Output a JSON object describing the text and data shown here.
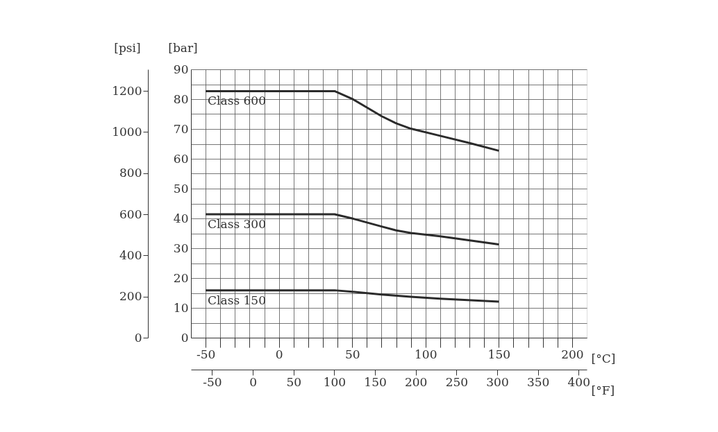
{
  "chart_data": {
    "type": "line",
    "xlabel": "[°C]",
    "ylabel": "[bar]",
    "y2label": "[psi]",
    "x2label": "[°F]",
    "xlim": [
      -60,
      210
    ],
    "xticks": [
      {
        "value": -50,
        "label": "-50"
      },
      {
        "value": -40,
        "label": null
      },
      {
        "value": -30,
        "label": null
      },
      {
        "value": -20,
        "label": null
      },
      {
        "value": -10,
        "label": null
      },
      0,
      {
        "value": 10,
        "label": null
      },
      {
        "value": 20,
        "label": null
      },
      {
        "value": 30,
        "label": null
      },
      {
        "value": 40,
        "label": null
      },
      50,
      {
        "value": 60,
        "label": null
      },
      {
        "value": 70,
        "label": null
      },
      {
        "value": 80,
        "label": null
      },
      {
        "value": 90,
        "label": null
      },
      100,
      {
        "value": 110,
        "label": null
      },
      {
        "value": 120,
        "label": null
      },
      {
        "value": 130,
        "label": null
      },
      {
        "value": 140,
        "label": null
      },
      150,
      {
        "value": 160,
        "label": null
      },
      {
        "value": 170,
        "label": null
      },
      {
        "value": 180,
        "label": null
      },
      {
        "value": 190,
        "label": null
      },
      200
    ],
    "ylim": [
      0,
      90
    ],
    "yticks": [
      0,
      {
        "value": 5,
        "label": null
      },
      10,
      {
        "value": 15,
        "label": null
      },
      20,
      {
        "value": 25,
        "label": null
      },
      30,
      {
        "value": 35,
        "label": null
      },
      40,
      {
        "value": 45,
        "label": null
      },
      50,
      {
        "value": 55,
        "label": null
      },
      60,
      {
        "value": 65,
        "label": null
      },
      70,
      {
        "value": 75,
        "label": null
      },
      80,
      {
        "value": 85,
        "label": null
      },
      90
    ],
    "y2lim": [
      0,
      1305
    ],
    "y2ticks": [
      0,
      200,
      400,
      600,
      800,
      1000,
      1200
    ],
    "x2lim": [
      -76,
      410
    ],
    "x2ticks": [
      {
        "value": -50,
        "label": "-50"
      },
      0,
      50,
      100,
      150,
      200,
      250,
      300,
      350,
      400
    ],
    "grid": true,
    "series": [
      {
        "name": "Class 600",
        "color": "#2b2b2b",
        "x": [
          -50,
          38,
          50,
          60,
          70,
          80,
          90,
          110,
          130,
          150
        ],
        "values": [
          82.7,
          82.7,
          80.1,
          77.2,
          74.3,
          71.9,
          70.1,
          67.7,
          65.3,
          62.7
        ]
      },
      {
        "name": "Class 300",
        "color": "#2b2b2b",
        "x": [
          -50,
          38,
          50,
          70,
          80,
          90,
          110,
          150
        ],
        "values": [
          41.4,
          41.4,
          40.0,
          37.3,
          36.0,
          35.1,
          34.0,
          31.3
        ]
      },
      {
        "name": "Class 150",
        "color": "#2b2b2b",
        "x": [
          -50,
          38,
          50,
          70,
          90,
          110,
          150
        ],
        "values": [
          15.9,
          15.9,
          15.4,
          14.5,
          13.7,
          13.1,
          12.1
        ]
      }
    ]
  }
}
